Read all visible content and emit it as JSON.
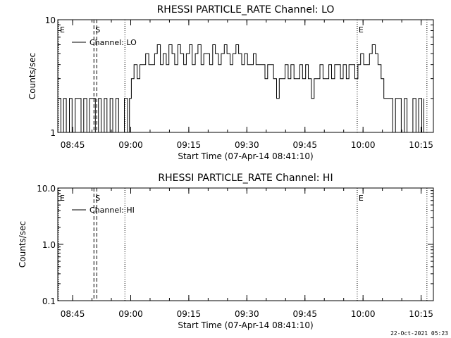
{
  "footer_stamp": "22-Oct-2021 05:23",
  "chart_data": [
    {
      "type": "line",
      "title": "RHESSI PARTICLE_RATE Channel: LO",
      "xlabel": "Start Time (07-Apr-14 08:41:10)",
      "ylabel": "Counts/sec",
      "yscale": "log",
      "ylim": [
        1,
        10
      ],
      "y_tick_labels": [
        "1",
        "10"
      ],
      "xlim_minutes_after_start": [
        0,
        97
      ],
      "x_tick_labels": [
        "08:45",
        "09:00",
        "09:15",
        "09:30",
        "09:45",
        "10:00",
        "10:15"
      ],
      "legend": {
        "placement": "top-left",
        "entries": [
          "Channel: LO"
        ]
      },
      "markers": [
        {
          "label": "E",
          "time": "08:41",
          "style": "dotted"
        },
        {
          "label": "S",
          "time": "08:50:30",
          "style": "dashed"
        },
        {
          "label": "",
          "time": "08:51:15",
          "style": "dashed"
        },
        {
          "label": "",
          "time": "08:58:30",
          "style": "dotted"
        },
        {
          "label": "E",
          "time": "09:58:30",
          "style": "dotted"
        },
        {
          "label": "",
          "time": "10:16:30",
          "style": "dotted"
        }
      ],
      "series": [
        {
          "name": "Channel: LO",
          "color": "#000000",
          "x_minutes_after_start": [
            0,
            0.8,
            1.5,
            2.2,
            3,
            3.7,
            4.5,
            5.2,
            6,
            6.7,
            7.5,
            8.2,
            9,
            9.7,
            10.5,
            11.2,
            12,
            12.7,
            13.5,
            14.2,
            15,
            15.7,
            16.5,
            17.2,
            18,
            18.5,
            19,
            19.7,
            20.5,
            21.2,
            22,
            22.7,
            23.5,
            24.2,
            25,
            25.7,
            26.5,
            27.2,
            28,
            28.7,
            29.5,
            30.2,
            31,
            31.7,
            32.5,
            33.2,
            34,
            34.7,
            35.5,
            36.2,
            37,
            37.7,
            38.5,
            39.2,
            40,
            40.7,
            41.5,
            42.2,
            43,
            43.7,
            44.5,
            45.2,
            46,
            46.7,
            47.5,
            48.2,
            49,
            49.7,
            50.5,
            51.2,
            52,
            52.7,
            53.5,
            54.2,
            55,
            55.7,
            56.5,
            57.2,
            58,
            58.7,
            59.5,
            60.2,
            61,
            61.7,
            62.5,
            63.2,
            64,
            64.7,
            65.5,
            66.2,
            67,
            67.7,
            68.5,
            69.2,
            70,
            70.7,
            71.5,
            72.2,
            73,
            73.7,
            74.5,
            75.2,
            76,
            76.7,
            77.5,
            78.2,
            79,
            79.7,
            80.5,
            81.2,
            82,
            82.7,
            83.5,
            84.2,
            85,
            85.7,
            86.5,
            87.2,
            88,
            88.7,
            89.5,
            90.2,
            91,
            91.7,
            92.5,
            93.2,
            94,
            94.5
          ],
          "y_counts_per_sec": [
            2,
            1,
            2,
            1,
            2,
            1,
            2,
            2,
            1,
            2,
            1,
            2,
            2,
            1,
            2,
            1,
            2,
            1,
            2,
            1,
            2,
            1,
            1,
            2,
            1,
            2,
            3,
            4,
            3,
            4,
            4,
            5,
            4,
            4,
            5,
            6,
            4,
            5,
            4,
            6,
            5,
            4,
            6,
            5,
            4,
            5,
            6,
            4,
            5,
            6,
            4,
            5,
            5,
            4,
            6,
            5,
            4,
            5,
            6,
            5,
            4,
            5,
            6,
            5,
            4,
            5,
            4,
            4,
            5,
            4,
            4,
            4,
            3,
            4,
            4,
            3,
            2,
            3,
            3,
            4,
            3,
            4,
            3,
            3,
            4,
            3,
            4,
            3,
            2,
            3,
            3,
            4,
            3,
            3,
            4,
            3,
            4,
            4,
            3,
            4,
            3,
            4,
            4,
            3,
            4,
            5,
            4,
            4,
            5,
            6,
            5,
            4,
            3,
            2,
            2,
            2,
            1,
            2,
            2,
            1,
            2,
            1,
            1,
            2,
            1,
            2,
            1,
            2
          ]
        }
      ]
    },
    {
      "type": "line",
      "title": "RHESSI PARTICLE_RATE Channel: HI",
      "xlabel": "Start Time (07-Apr-14 08:41:10)",
      "ylabel": "Counts/sec",
      "yscale": "log",
      "ylim": [
        0.1,
        10
      ],
      "y_tick_labels": [
        "0.1",
        "1.0",
        "10.0"
      ],
      "xlim_minutes_after_start": [
        0,
        97
      ],
      "x_tick_labels": [
        "08:45",
        "09:00",
        "09:15",
        "09:30",
        "09:45",
        "10:00",
        "10:15"
      ],
      "legend": {
        "placement": "top-left",
        "entries": [
          "Channel: HI"
        ]
      },
      "markers": [
        {
          "label": "E",
          "time": "08:41",
          "style": "dotted"
        },
        {
          "label": "S",
          "time": "08:50:30",
          "style": "dashed"
        },
        {
          "label": "",
          "time": "08:51:15",
          "style": "dashed"
        },
        {
          "label": "",
          "time": "08:58:30",
          "style": "dotted"
        },
        {
          "label": "E",
          "time": "09:58:30",
          "style": "dotted"
        },
        {
          "label": "",
          "time": "10:16:30",
          "style": "dotted"
        }
      ],
      "series": [
        {
          "name": "Channel: HI",
          "color": "#000000",
          "x_minutes_after_start": [],
          "y_counts_per_sec": []
        }
      ]
    }
  ]
}
